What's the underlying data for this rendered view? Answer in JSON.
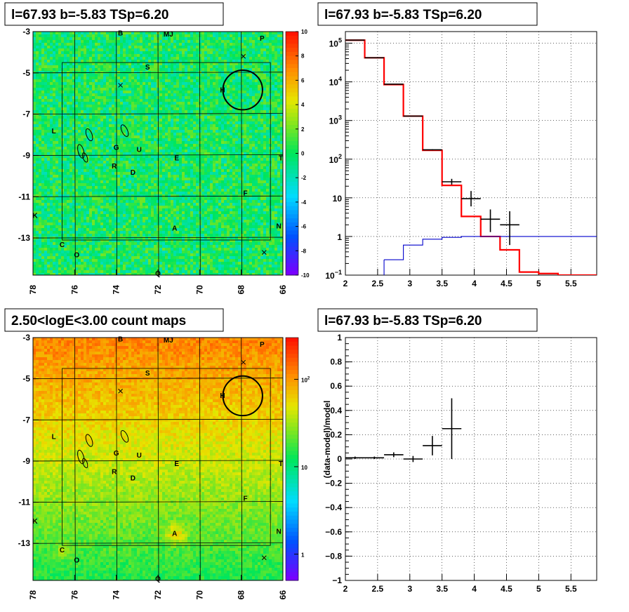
{
  "colors": {
    "data": "#000000",
    "model": "#ff0000",
    "background_component": "#0000cc"
  },
  "chart_data": [
    {
      "type": "heatmap",
      "title": "l=67.93 b=-5.83 TSp=6.20",
      "x_ticks": [
        "78",
        "76",
        "74",
        "72",
        "70",
        "68",
        "66"
      ],
      "y_ticks": [
        "-3",
        "-5",
        "-7",
        "-9",
        "-11",
        "-13"
      ],
      "xlim": [
        78,
        66
      ],
      "ylim": [
        -14.8,
        -3
      ],
      "colorbar": {
        "scale": "linear",
        "range": [
          -10,
          10
        ],
        "ticks": [
          "10",
          "8",
          "6",
          "4",
          "2",
          "0",
          "-2",
          "-4",
          "-6",
          "-8",
          "-10"
        ]
      },
      "source_labels": [
        {
          "text": "B",
          "l": 73.8,
          "b": -3.05
        },
        {
          "text": "MJ",
          "l": 71.5,
          "b": -3.1
        },
        {
          "text": "P",
          "l": 67.0,
          "b": -3.3
        },
        {
          "text": "S",
          "l": 72.5,
          "b": -4.7
        },
        {
          "text": "H",
          "l": 68.9,
          "b": -5.8
        },
        {
          "text": "L",
          "l": 77.0,
          "b": -7.8
        },
        {
          "text": "G",
          "l": 74.0,
          "b": -8.6
        },
        {
          "text": "U",
          "l": 72.9,
          "b": -8.7
        },
        {
          "text": "E",
          "l": 71.1,
          "b": -9.1
        },
        {
          "text": "T",
          "l": 66.1,
          "b": -9.1
        },
        {
          "text": "R",
          "l": 74.1,
          "b": -9.5
        },
        {
          "text": "D",
          "l": 73.2,
          "b": -9.8
        },
        {
          "text": "F",
          "l": 67.8,
          "b": -10.8
        },
        {
          "text": "K",
          "l": 77.9,
          "b": -11.9
        },
        {
          "text": "A",
          "l": 71.2,
          "b": -12.5
        },
        {
          "text": "N",
          "l": 66.2,
          "b": -12.4
        },
        {
          "text": "C",
          "l": 76.6,
          "b": -13.3
        },
        {
          "text": "O",
          "l": 75.9,
          "b": -13.8
        },
        {
          "text": "Q",
          "l": 72.0,
          "b": -14.7
        }
      ],
      "cross_markers": [
        {
          "l": 67.9,
          "b": -4.2
        },
        {
          "l": 73.8,
          "b": -5.6
        },
        {
          "l": 66.9,
          "b": -13.7
        }
      ],
      "circle": {
        "l": 67.93,
        "b": -5.83,
        "radius_deg": 0.5
      }
    },
    {
      "type": "line",
      "title": "l=67.93 b=-5.83 TSp=6.20",
      "xlabel": "",
      "ylabel": "",
      "xlim": [
        2,
        5.9
      ],
      "ylim": [
        0.1,
        200000
      ],
      "y_scale": "log",
      "x_ticks": [
        "2",
        "2.5",
        "3",
        "3.5",
        "4",
        "4.5",
        "5",
        "5.5"
      ],
      "y_ticks": [
        "10^-1",
        "1",
        "10",
        "10^2",
        "10^3",
        "10^4",
        "10^5"
      ],
      "grid": true,
      "series": [
        {
          "kind": "step",
          "color": "#ff0000",
          "edges": [
            2.0,
            2.3,
            2.6,
            2.9,
            3.2,
            3.5,
            3.8,
            4.1,
            4.4,
            4.7,
            5.0,
            5.3,
            5.9
          ],
          "values": [
            120000,
            42000,
            8500,
            1300,
            170,
            21,
            3.3,
            1.0,
            0.45,
            0.12,
            0.11,
            0.1
          ]
        },
        {
          "kind": "step",
          "color": "#0000cc",
          "edges": [
            2.6,
            2.9,
            3.2,
            3.5,
            3.8,
            4.1,
            4.4,
            4.7,
            5.0,
            5.3,
            5.9
          ],
          "values": [
            0.25,
            0.6,
            0.85,
            0.95,
            1.0,
            1.0,
            1.0,
            1.0,
            1.0,
            1.0
          ]
        },
        {
          "kind": "errorbars",
          "color": "#000000",
          "x": [
            2.15,
            2.45,
            2.75,
            3.05,
            3.35,
            3.65,
            3.95,
            4.25,
            4.55
          ],
          "xerr": 0.15,
          "y": [
            120000,
            42000,
            8700,
            1300,
            175,
            26,
            9.5,
            2.8,
            2.0
          ],
          "ylow": [
            120000,
            42000,
            8700,
            1300,
            170,
            22,
            6.0,
            1.3,
            0.6
          ],
          "yhigh": [
            120000,
            42000,
            8700,
            1300,
            180,
            31,
            15,
            5.0,
            4.5
          ]
        }
      ]
    },
    {
      "type": "heatmap",
      "title": "2.50<logE<3.00 count maps",
      "x_ticks": [
        "78",
        "76",
        "74",
        "72",
        "70",
        "68",
        "66"
      ],
      "y_ticks": [
        "-3",
        "-5",
        "-7",
        "-9",
        "-11",
        "-13"
      ],
      "xlim": [
        78,
        66
      ],
      "ylim": [
        -14.8,
        -3
      ],
      "colorbar": {
        "scale": "log",
        "range": [
          0.5,
          300
        ],
        "ticks": [
          "10^2",
          "10",
          "1"
        ]
      },
      "source_labels": [
        {
          "text": "B",
          "l": 73.8,
          "b": -3.05
        },
        {
          "text": "MJ",
          "l": 71.5,
          "b": -3.1
        },
        {
          "text": "P",
          "l": 67.0,
          "b": -3.3
        },
        {
          "text": "S",
          "l": 72.5,
          "b": -4.7
        },
        {
          "text": "H",
          "l": 68.9,
          "b": -5.8
        },
        {
          "text": "L",
          "l": 77.0,
          "b": -7.8
        },
        {
          "text": "G",
          "l": 74.0,
          "b": -8.6
        },
        {
          "text": "U",
          "l": 72.9,
          "b": -8.7
        },
        {
          "text": "E",
          "l": 71.1,
          "b": -9.1
        },
        {
          "text": "T",
          "l": 66.1,
          "b": -9.1
        },
        {
          "text": "R",
          "l": 74.1,
          "b": -9.5
        },
        {
          "text": "D",
          "l": 73.2,
          "b": -9.8
        },
        {
          "text": "F",
          "l": 67.8,
          "b": -10.8
        },
        {
          "text": "K",
          "l": 77.9,
          "b": -11.9
        },
        {
          "text": "A",
          "l": 71.2,
          "b": -12.5
        },
        {
          "text": "N",
          "l": 66.2,
          "b": -12.4
        },
        {
          "text": "C",
          "l": 76.6,
          "b": -13.3
        },
        {
          "text": "O",
          "l": 75.9,
          "b": -13.8
        },
        {
          "text": "Q",
          "l": 72.0,
          "b": -14.7
        }
      ],
      "cross_markers": [
        {
          "l": 67.9,
          "b": -4.2
        },
        {
          "l": 73.8,
          "b": -5.6
        },
        {
          "l": 66.9,
          "b": -13.7
        }
      ],
      "circle": {
        "l": 67.93,
        "b": -5.83,
        "radius_deg": 0.5
      }
    },
    {
      "type": "scatter",
      "title": "l=67.93 b=-5.83 TSp=6.20",
      "xlabel": "",
      "ylabel": "(data-model)/model",
      "xlim": [
        2,
        5.9
      ],
      "ylim": [
        -1,
        1
      ],
      "x_ticks": [
        "2",
        "2.5",
        "3",
        "3.5",
        "4",
        "4.5",
        "5",
        "5.5"
      ],
      "y_ticks": [
        "1",
        "0.8",
        "0.6",
        "0.4",
        "0.2",
        "0",
        "−0.2",
        "−0.4",
        "−0.6",
        "−0.8",
        "−1"
      ],
      "grid": true,
      "series": [
        {
          "kind": "errorbars",
          "color": "#000000",
          "x": [
            2.15,
            2.45,
            2.75,
            3.05,
            3.35,
            3.65
          ],
          "xerr": 0.15,
          "y": [
            0.01,
            0.01,
            0.035,
            0.0,
            0.11,
            0.25
          ],
          "ylow": [
            0.0,
            0.0,
            0.015,
            -0.025,
            0.03,
            0.0
          ],
          "yhigh": [
            0.02,
            0.02,
            0.055,
            0.025,
            0.19,
            0.5
          ]
        }
      ]
    }
  ]
}
